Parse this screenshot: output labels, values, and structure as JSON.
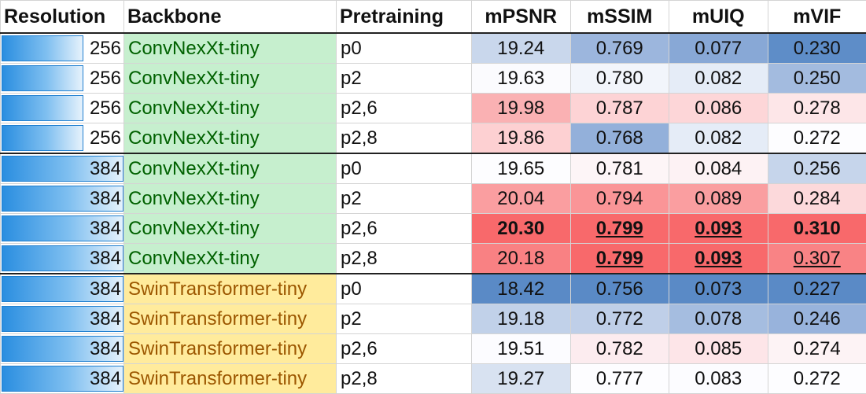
{
  "headers": {
    "resolution": "Resolution",
    "backbone": "Backbone",
    "pretraining": "Pretraining",
    "mpsnr": "mPSNR",
    "mssim": "mSSIM",
    "muiq": "mUIQ",
    "mvif": "mVIF"
  },
  "rows": [
    {
      "resolution": "256",
      "backbone": "ConvNexXt-tiny",
      "pretraining": "p0",
      "mpsnr": "19.24",
      "mssim": "0.769",
      "muiq": "0.077",
      "mvif": "0.230"
    },
    {
      "resolution": "256",
      "backbone": "ConvNexXt-tiny",
      "pretraining": "p2",
      "mpsnr": "19.63",
      "mssim": "0.780",
      "muiq": "0.082",
      "mvif": "0.250"
    },
    {
      "resolution": "256",
      "backbone": "ConvNexXt-tiny",
      "pretraining": "p2,6",
      "mpsnr": "19.98",
      "mssim": "0.787",
      "muiq": "0.086",
      "mvif": "0.278"
    },
    {
      "resolution": "256",
      "backbone": "ConvNexXt-tiny",
      "pretraining": "p2,8",
      "mpsnr": "19.86",
      "mssim": "0.768",
      "muiq": "0.082",
      "mvif": "0.272"
    },
    {
      "resolution": "384",
      "backbone": "ConvNexXt-tiny",
      "pretraining": "p0",
      "mpsnr": "19.65",
      "mssim": "0.781",
      "muiq": "0.084",
      "mvif": "0.256"
    },
    {
      "resolution": "384",
      "backbone": "ConvNexXt-tiny",
      "pretraining": "p2",
      "mpsnr": "20.04",
      "mssim": "0.794",
      "muiq": "0.089",
      "mvif": "0.284"
    },
    {
      "resolution": "384",
      "backbone": "ConvNexXt-tiny",
      "pretraining": "p2,6",
      "mpsnr": "20.30",
      "mssim": "0.799",
      "muiq": "0.093",
      "mvif": "0.310"
    },
    {
      "resolution": "384",
      "backbone": "ConvNexXt-tiny",
      "pretraining": "p2,8",
      "mpsnr": "20.18",
      "mssim": "0.799",
      "muiq": "0.093",
      "mvif": "0.307"
    },
    {
      "resolution": "384",
      "backbone": "SwinTransformer-tiny",
      "pretraining": "p0",
      "mpsnr": "18.42",
      "mssim": "0.756",
      "muiq": "0.073",
      "mvif": "0.227"
    },
    {
      "resolution": "384",
      "backbone": "SwinTransformer-tiny",
      "pretraining": "p2",
      "mpsnr": "19.18",
      "mssim": "0.772",
      "muiq": "0.078",
      "mvif": "0.246"
    },
    {
      "resolution": "384",
      "backbone": "SwinTransformer-tiny",
      "pretraining": "p2,6",
      "mpsnr": "19.51",
      "mssim": "0.782",
      "muiq": "0.085",
      "mvif": "0.274"
    },
    {
      "resolution": "384",
      "backbone": "SwinTransformer-tiny",
      "pretraining": "p2,8",
      "mpsnr": "19.27",
      "mssim": "0.777",
      "muiq": "0.083",
      "mvif": "0.272"
    }
  ],
  "cell_colors": {
    "mpsnr": [
      "#c9d7ec",
      "#fbfbfe",
      "#fab1b3",
      "#fdd0d2",
      "#fdfdff",
      "#fa9ea0",
      "#f8696b",
      "#f98183",
      "#5a8ac6",
      "#c1d1e9",
      "#fcfcff",
      "#d8e2f1"
    ],
    "mssim": [
      "#9cb6dd",
      "#f2f5fb",
      "#fdd3d5",
      "#93b0da",
      "#fdf5f7",
      "#fa9597",
      "#f8696b",
      "#f8696b",
      "#5a8ac6",
      "#bfcfe8",
      "#fcecef",
      "#fdfdff"
    ],
    "muiq": [
      "#88a8d6",
      "#e5ecf7",
      "#fdd6d8",
      "#e5ecf7",
      "#fdf2f4",
      "#fa9ea0",
      "#f8696b",
      "#f8696b",
      "#5a8ac6",
      "#a5bde0",
      "#fde5e8",
      "#fcfcff"
    ],
    "mvif": [
      "#5e8dc8",
      "#a3bbdf",
      "#fde6e8",
      "#fdfdff",
      "#c6d5eb",
      "#fcd9db",
      "#f8696b",
      "#f98385",
      "#5a8ac6",
      "#98b3dc",
      "#fdf3f5",
      "#fdfdff"
    ]
  },
  "emphasis": {
    "bold_underline": [
      [
        "mssim",
        6
      ],
      [
        "muiq",
        6
      ],
      [
        "mssim",
        7
      ],
      [
        "muiq",
        7
      ]
    ],
    "bold": [
      [
        "mpsnr",
        6
      ],
      [
        "mvif",
        6
      ]
    ],
    "underline": [
      [
        "mvif",
        7
      ]
    ]
  },
  "resolution_bar_fraction": {
    "256": 0.667,
    "384": 1.0
  }
}
